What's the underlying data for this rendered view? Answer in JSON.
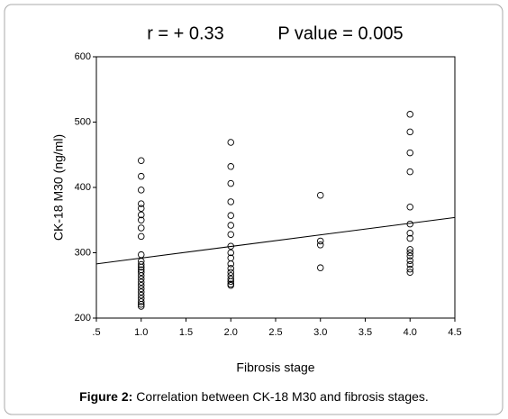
{
  "chart_data": {
    "type": "scatter",
    "annotations": [
      "r = + 0.33",
      "P value = 0.005"
    ],
    "x_label": "Fibrosis stage",
    "y_label": "CK-18 M30 (ng/ml)",
    "caption": {
      "label": "Figure 2:",
      "text": "Correlation between CK-18 M30 and fibrosis stages."
    },
    "x": [
      1,
      1,
      1,
      1,
      1,
      1,
      1,
      1,
      1,
      1,
      1,
      1,
      1,
      1,
      1,
      1,
      1,
      1,
      1,
      1,
      1,
      1,
      1,
      1,
      1,
      1,
      2,
      2,
      2,
      2,
      2,
      2,
      2,
      2,
      2,
      2,
      2,
      2,
      2,
      2,
      2,
      2,
      2,
      2,
      3,
      3,
      3,
      3,
      4,
      4,
      4,
      4,
      4,
      4,
      4,
      4,
      4,
      4,
      4,
      4,
      4,
      4,
      4
    ],
    "y": [
      441,
      417,
      396,
      375,
      368,
      358,
      350,
      338,
      325,
      297,
      287,
      282,
      278,
      274,
      270,
      265,
      260,
      255,
      250,
      245,
      240,
      235,
      230,
      225,
      221,
      218,
      469,
      432,
      406,
      378,
      357,
      342,
      328,
      310,
      300,
      292,
      283,
      276,
      270,
      265,
      260,
      256,
      252,
      250,
      388,
      318,
      312,
      277,
      512,
      485,
      453,
      424,
      370,
      344,
      330,
      322,
      305,
      300,
      295,
      288,
      282,
      275,
      270
    ],
    "color": "#000000",
    "fit_line": {
      "x": [
        0.5,
        4.5
      ],
      "y": [
        283,
        354
      ]
    },
    "xlim": [
      0.5,
      4.5
    ],
    "ylim": [
      200,
      600
    ],
    "xticks": [
      {
        "value": 0.5,
        "label": ".5"
      },
      {
        "value": 1,
        "label": "1.0"
      },
      {
        "value": 1.5,
        "label": "1.5"
      },
      {
        "value": 2,
        "label": "2.0"
      },
      {
        "value": 2.5,
        "label": "2.5"
      },
      {
        "value": 3,
        "label": "3.0"
      },
      {
        "value": 3.5,
        "label": "3.5"
      },
      {
        "value": 4,
        "label": "4.0"
      },
      {
        "value": 4.5,
        "label": "4.5"
      }
    ],
    "yticks": [
      200,
      300,
      400,
      500,
      600
    ]
  }
}
